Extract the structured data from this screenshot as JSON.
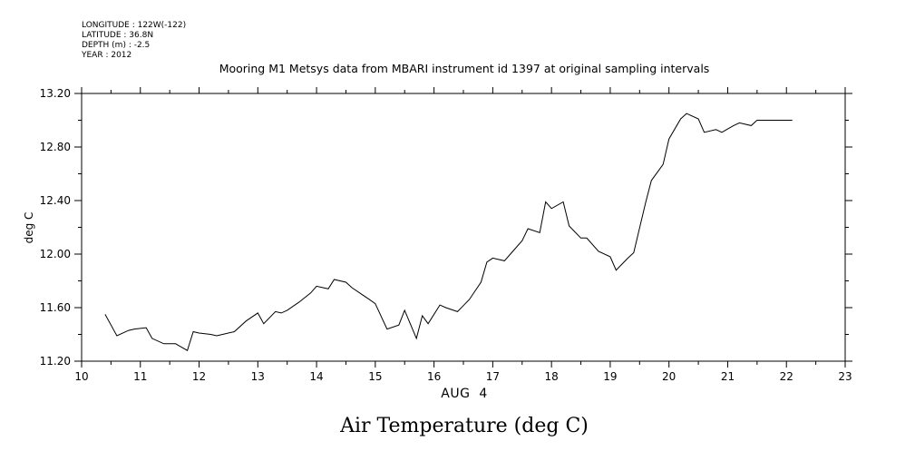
{
  "header": {
    "meta_lines": [
      "LONGITUDE : 122W(-122)",
      "LATITUDE : 36.8N",
      "DEPTH (m) : -2.5",
      "YEAR : 2012"
    ]
  },
  "caption": "Air Temperature (deg C)",
  "colors": {
    "line": "#000000",
    "axes": "#000000",
    "background": "#ffffff"
  },
  "chart_data": {
    "type": "line",
    "title": "Mooring M1 Metsys data from MBARI instrument id 1397 at original sampling intervals",
    "xlabel": "AUG  4",
    "ylabel": "deg C",
    "xlim": [
      10,
      23
    ],
    "ylim": [
      11.2,
      13.2
    ],
    "x_ticks": [
      10,
      11,
      12,
      13,
      14,
      15,
      16,
      17,
      18,
      19,
      20,
      21,
      22,
      23
    ],
    "x_tick_labels": [
      "10",
      "11",
      "12",
      "13",
      "14",
      "15",
      "16",
      "17",
      "18",
      "19",
      "20",
      "21",
      "22",
      "23"
    ],
    "x_minor_step": 0.5,
    "y_ticks": [
      11.2,
      11.6,
      12.0,
      12.4,
      12.8,
      13.2
    ],
    "y_tick_labels": [
      "11.20",
      "11.60",
      "12.00",
      "12.40",
      "12.80",
      "13.20"
    ],
    "y_minor_step": 0.2,
    "grid": false,
    "series": [
      {
        "x": [
          10.4,
          10.6,
          10.8,
          10.9,
          11.1,
          11.2,
          11.4,
          11.6,
          11.8,
          11.9,
          12.0,
          12.2,
          12.3,
          12.4,
          12.6,
          12.8,
          13.0,
          13.1,
          13.3,
          13.4,
          13.5,
          13.7,
          13.9,
          14.0,
          14.2,
          14.3,
          14.5,
          14.6,
          14.8,
          14.9,
          15.0,
          15.2,
          15.4,
          15.5,
          15.7,
          15.8,
          15.9,
          16.1,
          16.2,
          16.4,
          16.6,
          16.8,
          16.9,
          17.0,
          17.2,
          17.3,
          17.5,
          17.6,
          17.8,
          17.9,
          18.0,
          18.2,
          18.3,
          18.5,
          18.6,
          18.8,
          19.0,
          19.1,
          19.3,
          19.4,
          19.6,
          19.7,
          19.9,
          20.0,
          20.2,
          20.3,
          20.5,
          20.6,
          20.8,
          20.9,
          21.1,
          21.2,
          21.4,
          21.5,
          21.7,
          21.8,
          22.0,
          22.1
        ],
        "y": [
          11.55,
          11.39,
          11.43,
          11.44,
          11.45,
          11.37,
          11.33,
          11.33,
          11.28,
          11.42,
          11.41,
          11.4,
          11.39,
          11.4,
          11.42,
          11.5,
          11.56,
          11.48,
          11.57,
          11.56,
          11.58,
          11.64,
          11.71,
          11.76,
          11.74,
          11.81,
          11.79,
          11.75,
          11.69,
          11.66,
          11.63,
          11.44,
          11.47,
          11.58,
          11.37,
          11.54,
          11.48,
          11.62,
          11.6,
          11.57,
          11.66,
          11.79,
          11.94,
          11.97,
          11.95,
          12.0,
          12.1,
          12.19,
          12.16,
          12.39,
          12.34,
          12.39,
          12.21,
          12.12,
          12.12,
          12.02,
          11.98,
          11.88,
          11.97,
          12.01,
          12.38,
          12.55,
          12.67,
          12.86,
          13.01,
          13.05,
          13.01,
          12.91,
          12.93,
          12.91,
          12.96,
          12.98,
          12.96,
          13.0,
          13.0,
          13.0,
          13.0,
          13.0
        ]
      }
    ]
  }
}
